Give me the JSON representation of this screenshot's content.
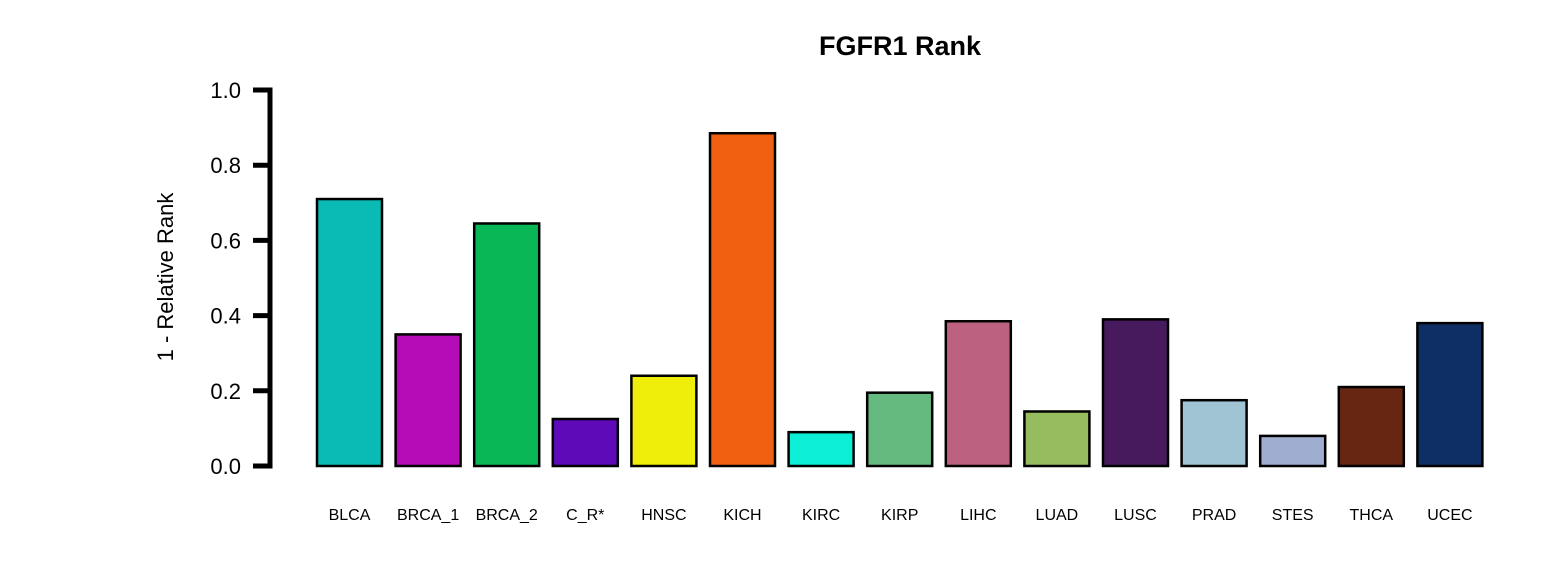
{
  "chart_data": {
    "type": "bar",
    "title": "FGFR1 Rank",
    "ylabel": "1 - Relative Rank",
    "xlabel": "",
    "ylim": [
      0,
      1
    ],
    "yticks": [
      "0.0",
      "0.2",
      "0.4",
      "0.6",
      "0.8",
      "1.0"
    ],
    "ytick_values": [
      0,
      0.2,
      0.4,
      0.6,
      0.8,
      1.0
    ],
    "grid": false,
    "legend": "none",
    "categories": [
      "BLCA",
      "BRCA_1",
      "BRCA_2",
      "C_R*",
      "HNSC",
      "KICH",
      "KIRC",
      "KIRP",
      "LIHC",
      "LUAD",
      "LUSC",
      "PRAD",
      "STES",
      "THCA",
      "UCEC"
    ],
    "values": [
      0.71,
      0.35,
      0.645,
      0.125,
      0.24,
      0.885,
      0.09,
      0.195,
      0.385,
      0.145,
      0.39,
      0.175,
      0.08,
      0.21,
      0.38
    ],
    "colors": [
      "#0ABAB5",
      "#B50CB8",
      "#0AB757",
      "#5E0AB8",
      "#EEEE0A",
      "#F16010",
      "#0DEED7",
      "#64BA7F",
      "#BD6180",
      "#97BC60",
      "#471A5E",
      "#A1C4D4",
      "#9FADD0",
      "#672612",
      "#0E2F65"
    ]
  }
}
